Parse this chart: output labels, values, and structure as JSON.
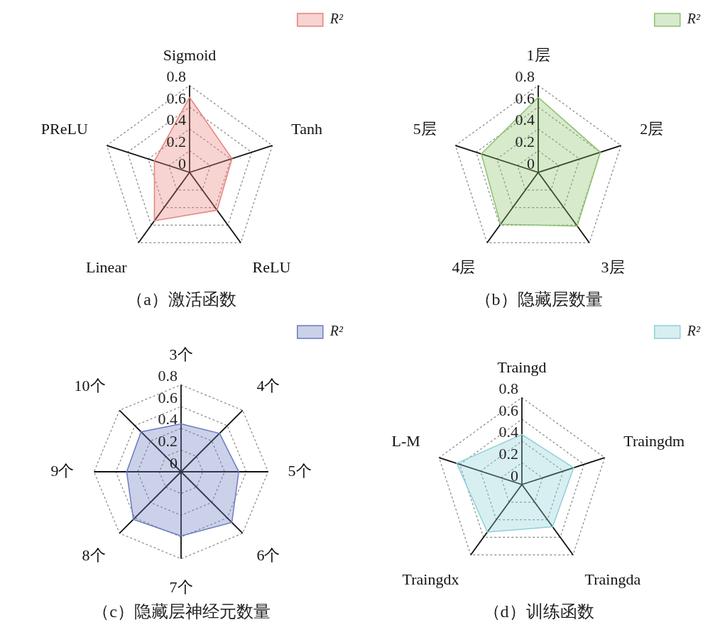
{
  "chart_data": [
    {
      "type": "radar",
      "title": "（a）激活函数",
      "categories": [
        "Sigmoid",
        "Tanh",
        "ReLU",
        "Linear",
        "PReLU"
      ],
      "series": [
        {
          "name": "R²",
          "color": "#e8827a",
          "values": [
            0.69,
            0.41,
            0.43,
            0.55,
            0.34
          ]
        }
      ],
      "ylim": [
        0,
        0.8
      ],
      "yticks": [
        0,
        0.2,
        0.4,
        0.6,
        0.8
      ],
      "grid": true,
      "legend": "top right",
      "marker": "none"
    },
    {
      "type": "radar",
      "title": "（b）隐藏层数量",
      "categories": [
        "1层",
        "2层",
        "3层",
        "4层",
        "5层"
      ],
      "series": [
        {
          "name": "R²",
          "color": "#8cc26e",
          "values": [
            0.69,
            0.6,
            0.61,
            0.59,
            0.55
          ]
        }
      ],
      "ylim": [
        0,
        0.8
      ],
      "yticks": [
        0,
        0.2,
        0.4,
        0.6,
        0.8
      ],
      "grid": true,
      "legend": "top right",
      "marker": "none"
    },
    {
      "type": "radar",
      "title": "（c）隐藏层神经元数量",
      "categories": [
        "3个",
        "4个",
        "5个",
        "6个",
        "7个",
        "8个",
        "9个",
        "10个"
      ],
      "series": [
        {
          "name": "R²",
          "color": "#6b7bc0",
          "values": [
            0.44,
            0.5,
            0.53,
            0.66,
            0.59,
            0.62,
            0.5,
            0.52
          ]
        }
      ],
      "ylim": [
        0,
        0.8
      ],
      "yticks": [
        0,
        0.2,
        0.4,
        0.6,
        0.8
      ],
      "grid": true,
      "legend": "top right",
      "marker": "none"
    },
    {
      "type": "radar",
      "title": "（d）训练函数",
      "categories": [
        "Traingd",
        "Traingdm",
        "Traingda",
        "Traingdx",
        "L-M"
      ],
      "series": [
        {
          "name": "R²",
          "color": "#8fd0d8",
          "values": [
            0.46,
            0.5,
            0.48,
            0.54,
            0.63
          ]
        }
      ],
      "ylim": [
        0,
        0.8
      ],
      "yticks": [
        0,
        0.2,
        0.4,
        0.6,
        0.8
      ],
      "grid": true,
      "legend": "top right",
      "marker": "none"
    }
  ]
}
